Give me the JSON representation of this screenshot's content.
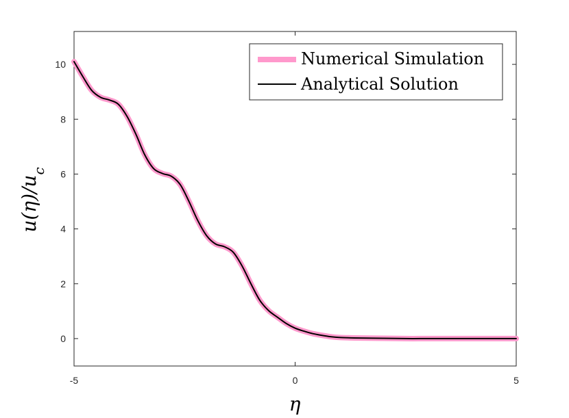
{
  "chart_data": {
    "type": "line",
    "title": "",
    "xlabel": "η",
    "ylabel": "u(η)/u_c",
    "xlim": [
      -5,
      5
    ],
    "ylim": [
      -1,
      11.2
    ],
    "xticks": [
      -5,
      0,
      5
    ],
    "yticks": [
      0,
      2,
      4,
      6,
      8,
      10
    ],
    "grid": false,
    "legend_position": "top-right",
    "series": [
      {
        "name": "Numerical Simulation",
        "color": "#ff99cc",
        "x": [
          -5.0,
          -4.8,
          -4.6,
          -4.4,
          -4.2,
          -4.0,
          -3.8,
          -3.6,
          -3.4,
          -3.2,
          -3.0,
          -2.8,
          -2.6,
          -2.4,
          -2.2,
          -2.0,
          -1.8,
          -1.6,
          -1.4,
          -1.2,
          -1.0,
          -0.8,
          -0.6,
          -0.4,
          -0.2,
          0.0,
          0.2,
          0.4,
          0.6,
          0.8,
          1.0,
          1.5,
          2.0,
          2.5,
          3.0,
          3.5,
          4.0,
          4.5,
          5.0
        ],
        "y": [
          10.1,
          9.55,
          9.05,
          8.8,
          8.7,
          8.55,
          8.1,
          7.45,
          6.7,
          6.2,
          6.02,
          5.92,
          5.62,
          5.0,
          4.3,
          3.75,
          3.45,
          3.35,
          3.15,
          2.65,
          2.0,
          1.4,
          1.02,
          0.78,
          0.55,
          0.38,
          0.27,
          0.18,
          0.12,
          0.07,
          0.04,
          0.02,
          0.01,
          0.0,
          0.0,
          0.0,
          0.0,
          0.0,
          0.0
        ]
      },
      {
        "name": "Analytical Solution",
        "color": "#000000",
        "x": [
          -5.0,
          -4.8,
          -4.6,
          -4.4,
          -4.2,
          -4.0,
          -3.8,
          -3.6,
          -3.4,
          -3.2,
          -3.0,
          -2.8,
          -2.6,
          -2.4,
          -2.2,
          -2.0,
          -1.8,
          -1.6,
          -1.4,
          -1.2,
          -1.0,
          -0.8,
          -0.6,
          -0.4,
          -0.2,
          0.0,
          0.2,
          0.4,
          0.6,
          0.8,
          1.0,
          1.5,
          2.0,
          2.5,
          3.0,
          3.5,
          4.0,
          4.5,
          5.0
        ],
        "y": [
          10.1,
          9.55,
          9.05,
          8.8,
          8.7,
          8.55,
          8.1,
          7.45,
          6.7,
          6.2,
          6.02,
          5.92,
          5.62,
          5.0,
          4.3,
          3.75,
          3.45,
          3.35,
          3.15,
          2.65,
          2.0,
          1.4,
          1.02,
          0.78,
          0.55,
          0.38,
          0.27,
          0.18,
          0.12,
          0.07,
          0.04,
          0.02,
          0.01,
          0.0,
          0.0,
          0.0,
          0.0,
          0.0,
          0.0
        ]
      }
    ]
  }
}
